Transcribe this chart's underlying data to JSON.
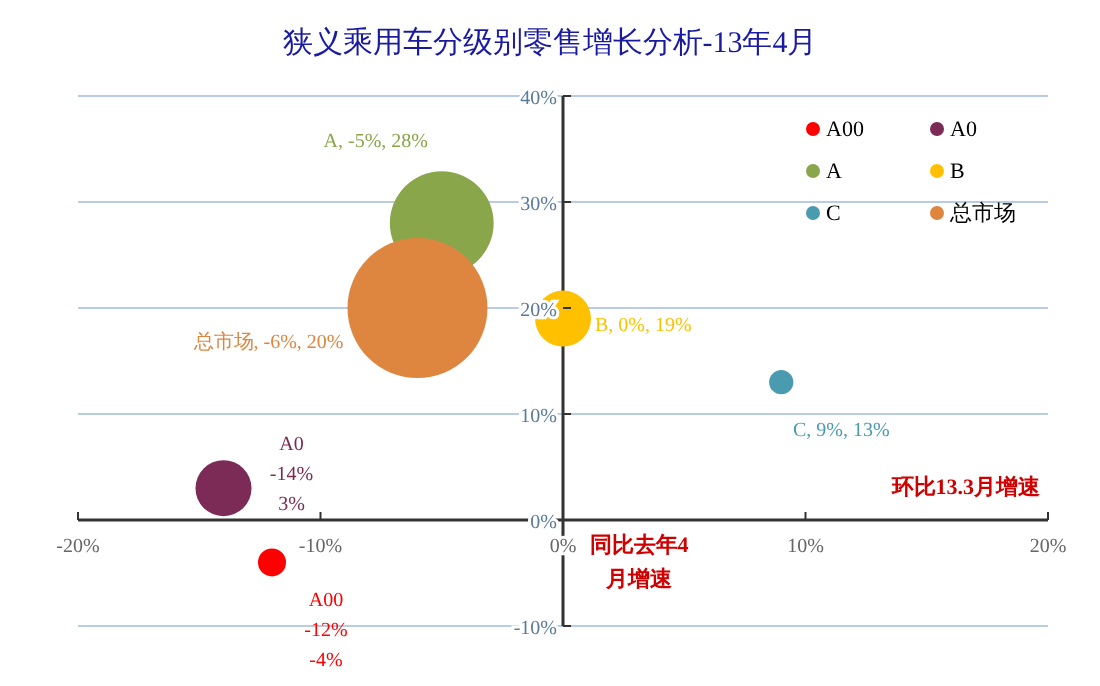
{
  "chart_data": {
    "type": "bubble",
    "title": "狭义乘用车分级别零售增长分析-13年4月",
    "xlabel": "环比13.3月增速",
    "ylabel": "同比去年4月增速",
    "xlim": [
      -20,
      20
    ],
    "xticks": [
      {
        "value": -20,
        "label": "-20%"
      },
      {
        "value": -10,
        "label": "-10%"
      },
      {
        "value": 0,
        "label": "0%"
      },
      {
        "value": 10,
        "label": "10%"
      },
      {
        "value": 20,
        "label": "20%"
      }
    ],
    "ylim": [
      -10,
      40
    ],
    "yticks": [
      {
        "value": -10,
        "label": "-10%"
      },
      {
        "value": 0,
        "label": "0%"
      },
      {
        "value": 10,
        "label": "10%"
      },
      {
        "value": 20,
        "label": "20%"
      },
      {
        "value": 30,
        "label": "30%"
      },
      {
        "value": 40,
        "label": "40%"
      }
    ],
    "grid": "y",
    "legend": "top right",
    "series": [
      {
        "name": "A00",
        "color": "#ff0000",
        "x": [
          -12
        ],
        "values": [
          -4
        ],
        "sizes": [
          0.04
        ],
        "value_labels": [
          "A00\n-12%\n-4%"
        ]
      },
      {
        "name": "A0",
        "color": "#7b2b55",
        "x": [
          -14
        ],
        "values": [
          3
        ],
        "sizes": [
          0.16
        ],
        "value_labels": [
          "A0\n-14%\n3%"
        ]
      },
      {
        "name": "A",
        "color": "#8aa64b",
        "x": [
          -5
        ],
        "values": [
          28
        ],
        "sizes": [
          0.55
        ],
        "value_labels": [
          "A, -5%, 28%"
        ]
      },
      {
        "name": "B",
        "color": "#ffc000",
        "x": [
          0
        ],
        "values": [
          19
        ],
        "sizes": [
          0.16
        ],
        "value_labels": [
          "B, 0%, 19%"
        ]
      },
      {
        "name": "C",
        "color": "#4a9ab0",
        "x": [
          9
        ],
        "values": [
          13
        ],
        "sizes": [
          0.03
        ],
        "value_labels": [
          "C, 9%, 13%"
        ]
      },
      {
        "name": "总市场",
        "color": "#de8540",
        "x": [
          -6
        ],
        "values": [
          20
        ],
        "sizes": [
          1
        ],
        "value_labels": [
          "总市场, -6%, 20%"
        ]
      }
    ]
  }
}
